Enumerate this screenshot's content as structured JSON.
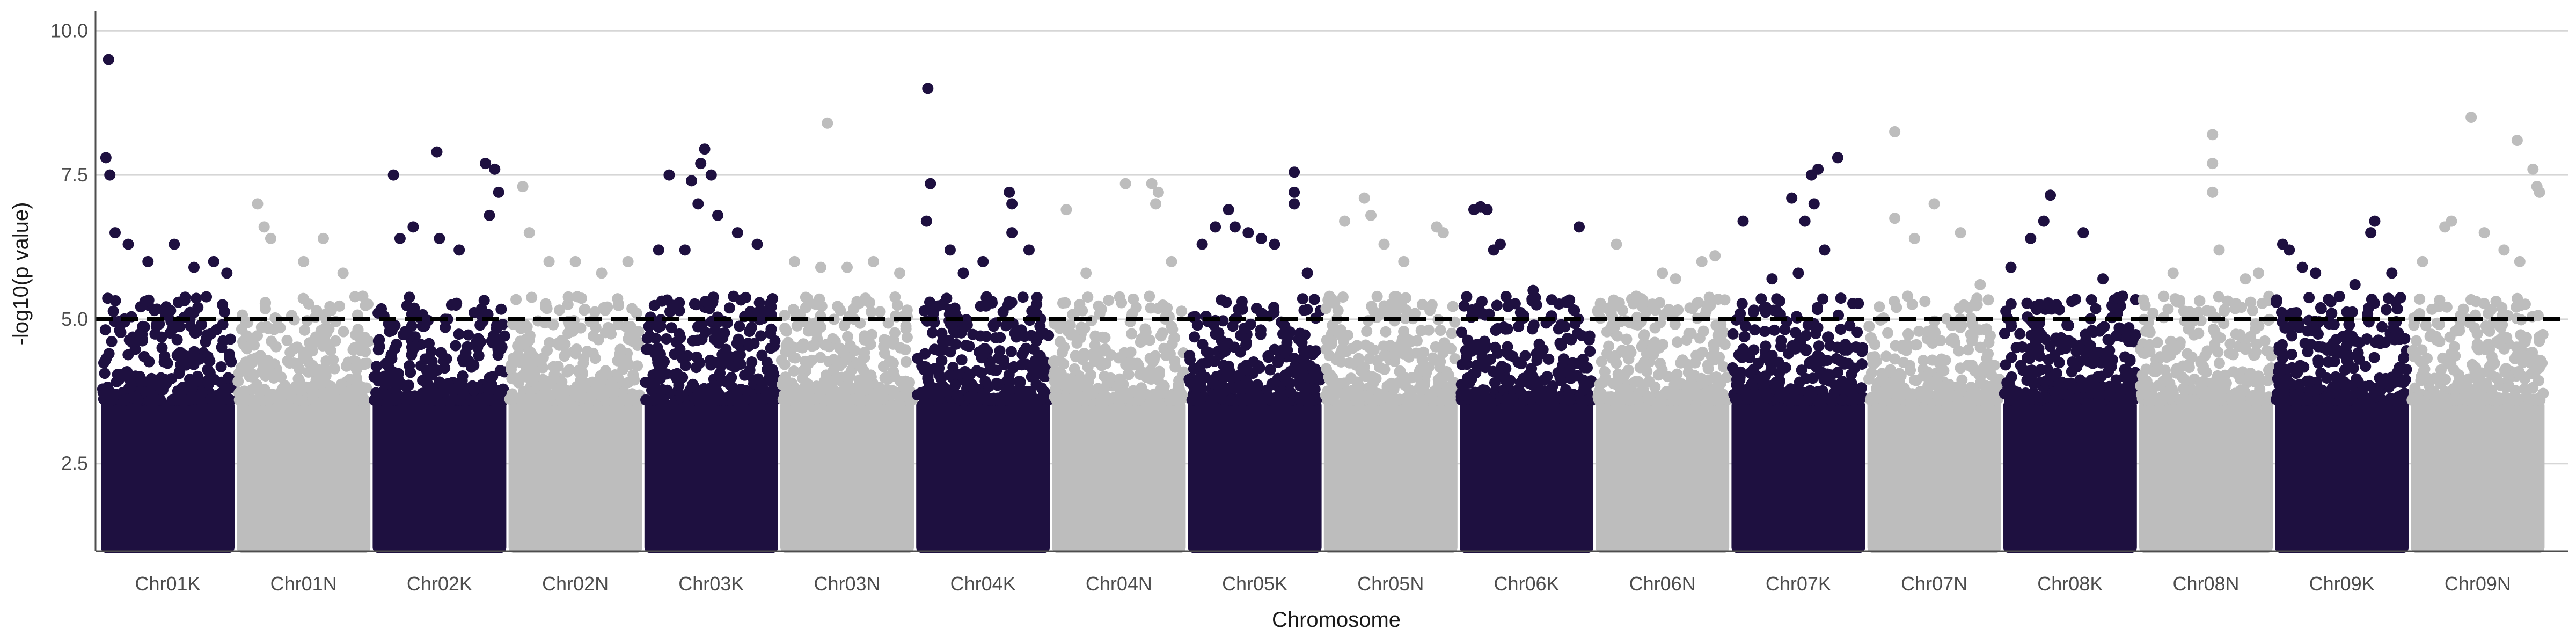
{
  "chart_data": {
    "type": "scatter",
    "subtype": "manhattan",
    "title": "",
    "xlabel": "Chromosome",
    "ylabel": "-log10(p value)",
    "ylim": [
      1.0,
      10.3
    ],
    "yticks": [
      2.5,
      5.0,
      7.5,
      10.0
    ],
    "ytick_labels": [
      "2.5",
      "5.0",
      "7.5",
      "10.0"
    ],
    "grid": "horizontal major lines",
    "threshold": 5.0,
    "colors": {
      "dark": "#1e1040",
      "light": "#bdbdbd",
      "threshold": "#000000",
      "grid": "#d6d6d6",
      "axis": "#4d4d4d"
    },
    "categories": [
      "Chr01K",
      "Chr01N",
      "Chr02K",
      "Chr02N",
      "Chr03K",
      "Chr03N",
      "Chr04K",
      "Chr04N",
      "Chr05K",
      "Chr05N",
      "Chr06K",
      "Chr06N",
      "Chr07K",
      "Chr07N",
      "Chr08K",
      "Chr08N",
      "Chr09K",
      "Chr09N"
    ],
    "chromosomes": [
      {
        "name": "Chr01K",
        "color": "dark",
        "top_points": [
          [
            0.05,
            9.5
          ],
          [
            0.03,
            7.8
          ],
          [
            0.06,
            7.5
          ],
          [
            0.1,
            6.5
          ],
          [
            0.2,
            6.3
          ],
          [
            0.35,
            6.0
          ],
          [
            0.55,
            6.3
          ],
          [
            0.7,
            5.9
          ],
          [
            0.85,
            6.0
          ],
          [
            0.95,
            5.8
          ]
        ]
      },
      {
        "name": "Chr01N",
        "color": "light",
        "top_points": [
          [
            0.15,
            7.0
          ],
          [
            0.2,
            6.6
          ],
          [
            0.25,
            6.4
          ],
          [
            0.5,
            6.0
          ],
          [
            0.65,
            6.4
          ],
          [
            0.8,
            5.8
          ],
          [
            0.95,
            5.4
          ]
        ]
      },
      {
        "name": "Chr02K",
        "color": "dark",
        "top_points": [
          [
            0.15,
            7.5
          ],
          [
            0.2,
            6.4
          ],
          [
            0.3,
            6.6
          ],
          [
            0.5,
            6.4
          ],
          [
            0.48,
            7.9
          ],
          [
            0.65,
            6.2
          ],
          [
            0.85,
            7.7
          ],
          [
            0.92,
            7.6
          ],
          [
            0.95,
            7.2
          ],
          [
            0.88,
            6.8
          ]
        ]
      },
      {
        "name": "Chr02N",
        "color": "light",
        "top_points": [
          [
            0.1,
            7.3
          ],
          [
            0.15,
            6.5
          ],
          [
            0.3,
            6.0
          ],
          [
            0.5,
            6.0
          ],
          [
            0.7,
            5.8
          ],
          [
            0.9,
            6.0
          ]
        ]
      },
      {
        "name": "Chr03K",
        "color": "dark",
        "top_points": [
          [
            0.18,
            7.5
          ],
          [
            0.35,
            7.4
          ],
          [
            0.42,
            7.7
          ],
          [
            0.45,
            7.95
          ],
          [
            0.5,
            7.5
          ],
          [
            0.4,
            7.0
          ],
          [
            0.55,
            6.8
          ],
          [
            0.3,
            6.2
          ],
          [
            0.7,
            6.5
          ],
          [
            0.85,
            6.3
          ],
          [
            0.1,
            6.2
          ]
        ]
      },
      {
        "name": "Chr03N",
        "color": "light",
        "top_points": [
          [
            0.35,
            8.4
          ],
          [
            0.1,
            6.0
          ],
          [
            0.3,
            5.9
          ],
          [
            0.5,
            5.9
          ],
          [
            0.7,
            6.0
          ],
          [
            0.9,
            5.8
          ]
        ]
      },
      {
        "name": "Chr04K",
        "color": "dark",
        "top_points": [
          [
            0.08,
            9.0
          ],
          [
            0.1,
            7.35
          ],
          [
            0.07,
            6.7
          ],
          [
            0.25,
            6.2
          ],
          [
            0.7,
            7.2
          ],
          [
            0.72,
            7.0
          ],
          [
            0.72,
            6.5
          ],
          [
            0.85,
            6.2
          ],
          [
            0.5,
            6.0
          ],
          [
            0.35,
            5.8
          ]
        ]
      },
      {
        "name": "Chr04N",
        "color": "light",
        "top_points": [
          [
            0.1,
            6.9
          ],
          [
            0.25,
            5.8
          ],
          [
            0.55,
            7.35
          ],
          [
            0.75,
            7.35
          ],
          [
            0.8,
            7.2
          ],
          [
            0.78,
            7.0
          ],
          [
            0.9,
            6.0
          ]
        ]
      },
      {
        "name": "Chr05K",
        "color": "dark",
        "top_points": [
          [
            0.1,
            6.3
          ],
          [
            0.2,
            6.6
          ],
          [
            0.3,
            6.9
          ],
          [
            0.35,
            6.6
          ],
          [
            0.45,
            6.5
          ],
          [
            0.55,
            6.4
          ],
          [
            0.8,
            7.55
          ],
          [
            0.8,
            7.2
          ],
          [
            0.8,
            7.0
          ],
          [
            0.65,
            6.3
          ],
          [
            0.9,
            5.8
          ]
        ]
      },
      {
        "name": "Chr05N",
        "color": "light",
        "top_points": [
          [
            0.15,
            6.7
          ],
          [
            0.3,
            7.1
          ],
          [
            0.35,
            6.8
          ],
          [
            0.45,
            6.3
          ],
          [
            0.6,
            6.0
          ],
          [
            0.85,
            6.6
          ],
          [
            0.9,
            6.5
          ]
        ]
      },
      {
        "name": "Chr06K",
        "color": "dark",
        "top_points": [
          [
            0.1,
            6.9
          ],
          [
            0.15,
            6.95
          ],
          [
            0.2,
            6.9
          ],
          [
            0.25,
            6.2
          ],
          [
            0.3,
            6.3
          ],
          [
            0.55,
            5.5
          ],
          [
            0.9,
            6.6
          ],
          [
            0.8,
            5.3
          ]
        ]
      },
      {
        "name": "Chr06N",
        "color": "light",
        "top_points": [
          [
            0.15,
            6.3
          ],
          [
            0.3,
            5.4
          ],
          [
            0.5,
            5.8
          ],
          [
            0.6,
            5.7
          ],
          [
            0.8,
            6.0
          ],
          [
            0.9,
            6.1
          ]
        ]
      },
      {
        "name": "Chr07K",
        "color": "dark",
        "top_points": [
          [
            0.08,
            6.7
          ],
          [
            0.45,
            7.1
          ],
          [
            0.55,
            6.7
          ],
          [
            0.6,
            7.5
          ],
          [
            0.65,
            7.6
          ],
          [
            0.62,
            7.0
          ],
          [
            0.8,
            7.8
          ],
          [
            0.7,
            6.2
          ],
          [
            0.5,
            5.8
          ],
          [
            0.3,
            5.7
          ]
        ]
      },
      {
        "name": "Chr07N",
        "color": "light",
        "top_points": [
          [
            0.2,
            8.25
          ],
          [
            0.2,
            6.75
          ],
          [
            0.35,
            6.4
          ],
          [
            0.5,
            7.0
          ],
          [
            0.7,
            6.5
          ],
          [
            0.85,
            5.6
          ]
        ]
      },
      {
        "name": "Chr08K",
        "color": "dark",
        "top_points": [
          [
            0.05,
            5.9
          ],
          [
            0.2,
            6.4
          ],
          [
            0.3,
            6.7
          ],
          [
            0.35,
            7.15
          ],
          [
            0.6,
            6.5
          ],
          [
            0.75,
            5.7
          ],
          [
            0.9,
            5.4
          ]
        ]
      },
      {
        "name": "Chr08N",
        "color": "light",
        "top_points": [
          [
            0.25,
            5.8
          ],
          [
            0.3,
            5.3
          ],
          [
            0.55,
            8.2
          ],
          [
            0.55,
            7.7
          ],
          [
            0.55,
            7.2
          ],
          [
            0.6,
            6.2
          ],
          [
            0.8,
            5.7
          ],
          [
            0.9,
            5.8
          ]
        ]
      },
      {
        "name": "Chr09K",
        "color": "dark",
        "top_points": [
          [
            0.05,
            6.3
          ],
          [
            0.1,
            6.2
          ],
          [
            0.2,
            5.9
          ],
          [
            0.3,
            5.8
          ],
          [
            0.6,
            5.6
          ],
          [
            0.75,
            6.7
          ],
          [
            0.72,
            6.5
          ],
          [
            0.88,
            5.8
          ]
        ]
      },
      {
        "name": "Chr09N",
        "color": "light",
        "top_points": [
          [
            0.08,
            6.0
          ],
          [
            0.25,
            6.6
          ],
          [
            0.3,
            6.7
          ],
          [
            0.45,
            8.5
          ],
          [
            0.55,
            6.5
          ],
          [
            0.7,
            6.2
          ],
          [
            0.8,
            8.1
          ],
          [
            0.82,
            6.0
          ],
          [
            0.92,
            7.6
          ],
          [
            0.95,
            7.3
          ],
          [
            0.97,
            7.2
          ]
        ]
      }
    ]
  }
}
